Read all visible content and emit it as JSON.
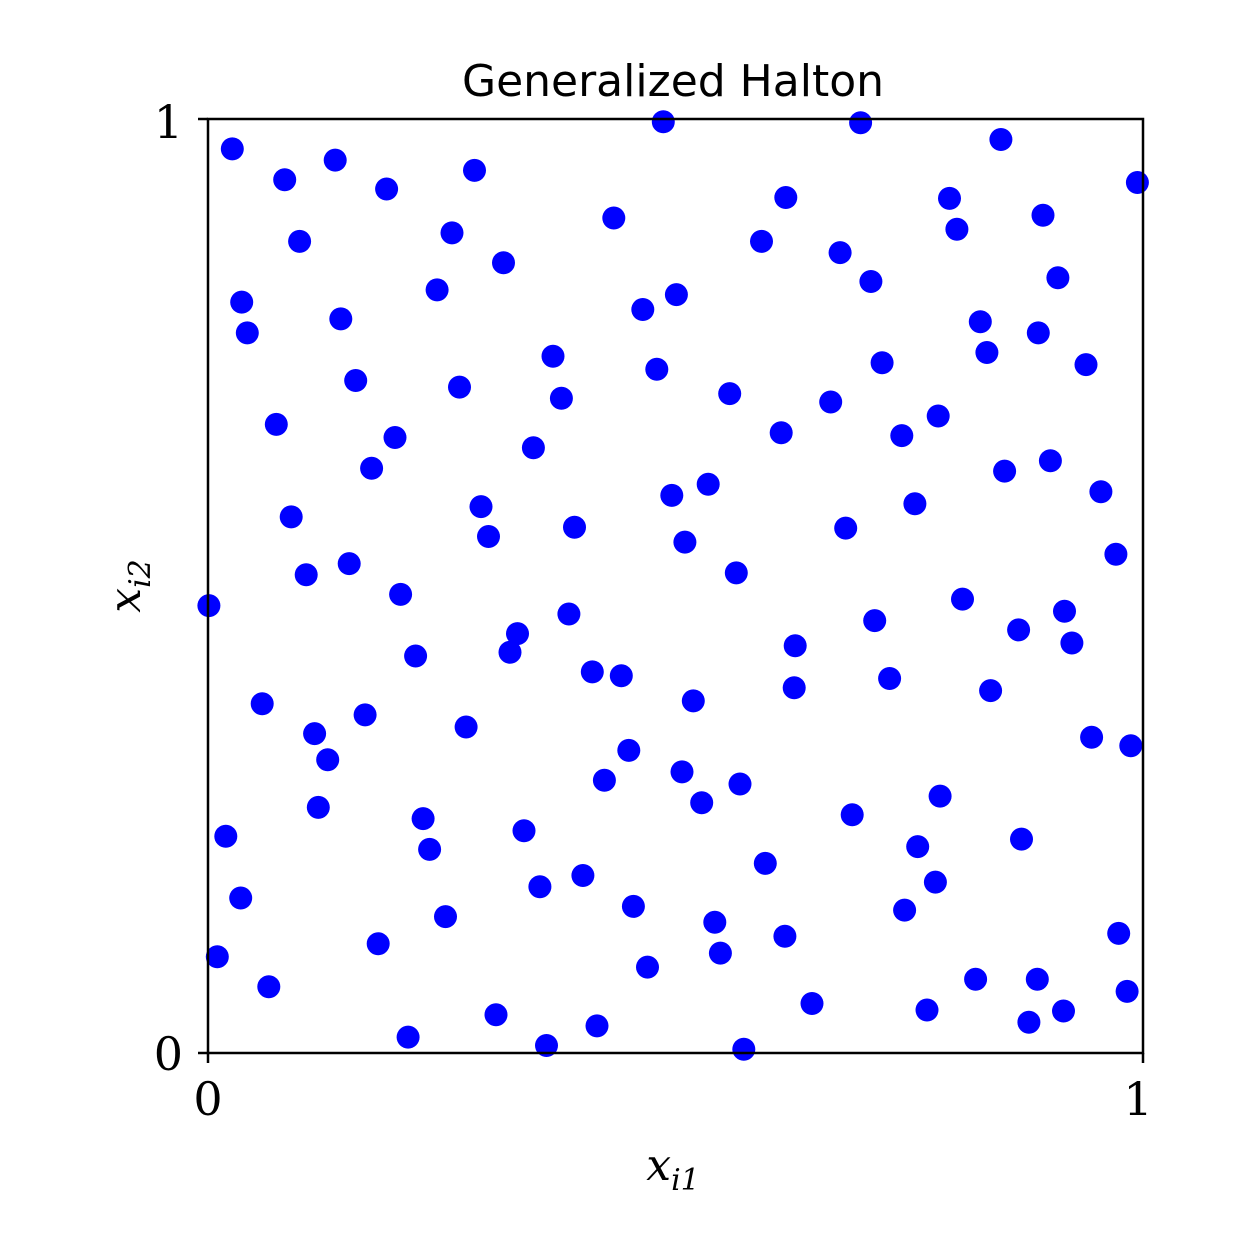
{
  "chart_data": {
    "type": "scatter",
    "title": "Generalized Halton",
    "xlabel": "x",
    "xlabel_sub": "i1",
    "ylabel": "x",
    "ylabel_sub": "i2",
    "xlim": [
      0,
      1
    ],
    "ylim": [
      0,
      1
    ],
    "xticks": [
      "0",
      "1"
    ],
    "yticks": [
      "0",
      "1"
    ],
    "grid": false,
    "marker_color": "#0000ff",
    "series": [
      {
        "points": [
          [
            0.026,
            0.968
          ],
          [
            0.082,
            0.935
          ],
          [
            0.136,
            0.956
          ],
          [
            0.191,
            0.925
          ],
          [
            0.285,
            0.945
          ],
          [
            0.487,
            0.997
          ],
          [
            0.698,
            0.996
          ],
          [
            0.848,
            0.978
          ],
          [
            0.994,
            0.932
          ],
          [
            0.036,
            0.804
          ],
          [
            0.098,
            0.869
          ],
          [
            0.261,
            0.878
          ],
          [
            0.316,
            0.846
          ],
          [
            0.434,
            0.894
          ],
          [
            0.592,
            0.869
          ],
          [
            0.618,
            0.916
          ],
          [
            0.676,
            0.857
          ],
          [
            0.709,
            0.826
          ],
          [
            0.793,
            0.915
          ],
          [
            0.801,
            0.882
          ],
          [
            0.893,
            0.897
          ],
          [
            0.909,
            0.83
          ],
          [
            0.042,
            0.771
          ],
          [
            0.142,
            0.786
          ],
          [
            0.245,
            0.817
          ],
          [
            0.465,
            0.796
          ],
          [
            0.501,
            0.812
          ],
          [
            0.826,
            0.783
          ],
          [
            0.833,
            0.75
          ],
          [
            0.888,
            0.771
          ],
          [
            0.158,
            0.72
          ],
          [
            0.073,
            0.673
          ],
          [
            0.269,
            0.713
          ],
          [
            0.369,
            0.746
          ],
          [
            0.378,
            0.701
          ],
          [
            0.48,
            0.732
          ],
          [
            0.558,
            0.706
          ],
          [
            0.613,
            0.664
          ],
          [
            0.666,
            0.697
          ],
          [
            0.721,
            0.739
          ],
          [
            0.742,
            0.661
          ],
          [
            0.781,
            0.682
          ],
          [
            0.939,
            0.737
          ],
          [
            0.2,
            0.659
          ],
          [
            0.175,
            0.626
          ],
          [
            0.348,
            0.648
          ],
          [
            0.089,
            0.574
          ],
          [
            0.292,
            0.585
          ],
          [
            0.3,
            0.553
          ],
          [
            0.392,
            0.563
          ],
          [
            0.496,
            0.597
          ],
          [
            0.51,
            0.547
          ],
          [
            0.535,
            0.609
          ],
          [
            0.682,
            0.562
          ],
          [
            0.756,
            0.588
          ],
          [
            0.852,
            0.623
          ],
          [
            0.901,
            0.634
          ],
          [
            0.955,
            0.601
          ],
          [
            0.971,
            0.534
          ],
          [
            0.001,
            0.479
          ],
          [
            0.105,
            0.512
          ],
          [
            0.151,
            0.524
          ],
          [
            0.206,
            0.491
          ],
          [
            0.222,
            0.425
          ],
          [
            0.331,
            0.449
          ],
          [
            0.323,
            0.429
          ],
          [
            0.386,
            0.47
          ],
          [
            0.411,
            0.408
          ],
          [
            0.565,
            0.514
          ],
          [
            0.713,
            0.463
          ],
          [
            0.807,
            0.486
          ],
          [
            0.867,
            0.453
          ],
          [
            0.916,
            0.473
          ],
          [
            0.924,
            0.439
          ],
          [
            0.058,
            0.374
          ],
          [
            0.114,
            0.342
          ],
          [
            0.128,
            0.314
          ],
          [
            0.168,
            0.362
          ],
          [
            0.276,
            0.349
          ],
          [
            0.442,
            0.404
          ],
          [
            0.519,
            0.377
          ],
          [
            0.627,
            0.391
          ],
          [
            0.628,
            0.436
          ],
          [
            0.729,
            0.401
          ],
          [
            0.837,
            0.388
          ],
          [
            0.118,
            0.263
          ],
          [
            0.019,
            0.232
          ],
          [
            0.23,
            0.251
          ],
          [
            0.237,
            0.218
          ],
          [
            0.338,
            0.238
          ],
          [
            0.424,
            0.292
          ],
          [
            0.45,
            0.324
          ],
          [
            0.528,
            0.268
          ],
          [
            0.507,
            0.301
          ],
          [
            0.569,
            0.288
          ],
          [
            0.689,
            0.255
          ],
          [
            0.783,
            0.275
          ],
          [
            0.945,
            0.338
          ],
          [
            0.987,
            0.329
          ],
          [
            0.035,
            0.166
          ],
          [
            0.01,
            0.103
          ],
          [
            0.065,
            0.071
          ],
          [
            0.182,
            0.117
          ],
          [
            0.254,
            0.146
          ],
          [
            0.355,
            0.178
          ],
          [
            0.401,
            0.19
          ],
          [
            0.455,
            0.157
          ],
          [
            0.542,
            0.14
          ],
          [
            0.596,
            0.203
          ],
          [
            0.759,
            0.221
          ],
          [
            0.778,
            0.183
          ],
          [
            0.745,
            0.153
          ],
          [
            0.87,
            0.229
          ],
          [
            0.47,
            0.092
          ],
          [
            0.548,
            0.107
          ],
          [
            0.617,
            0.125
          ],
          [
            0.646,
            0.053
          ],
          [
            0.821,
            0.079
          ],
          [
            0.974,
            0.128
          ],
          [
            0.983,
            0.066
          ],
          [
            0.214,
            0.017
          ],
          [
            0.308,
            0.041
          ],
          [
            0.362,
            0.008
          ],
          [
            0.416,
            0.029
          ],
          [
            0.573,
            0.004
          ],
          [
            0.769,
            0.046
          ],
          [
            0.878,
            0.033
          ],
          [
            0.887,
            0.079
          ],
          [
            0.915,
            0.045
          ]
        ]
      }
    ]
  }
}
